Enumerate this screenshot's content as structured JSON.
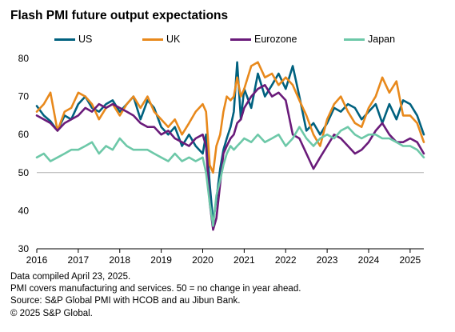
{
  "title": "Flash PMI future output expectations",
  "notes": [
    "Data compiled April 23, 2025.",
    "PMI covers manufacturing and services. 50 = no change in year ahead.",
    "Source: S&P Global PMI with HCOB and au Jibun Bank.",
    "© 2025 S&P Global."
  ],
  "chart_data": {
    "type": "line",
    "title": "Flash PMI future output expectations",
    "xlabel": "",
    "ylabel": "",
    "ylim": [
      30,
      80
    ],
    "yticks": [
      30,
      40,
      50,
      60,
      70,
      80
    ],
    "xlim": [
      2016.0,
      2025.33
    ],
    "xticks": [
      2016,
      2017,
      2018,
      2019,
      2020,
      2021,
      2022,
      2023,
      2024,
      2025
    ],
    "xtick_labels": [
      "2016",
      "2017",
      "2018",
      "2019",
      "2020",
      "2021",
      "2022",
      "2023",
      "2024",
      "2025"
    ],
    "reference_line": 50,
    "grid": false,
    "legend_position": "top",
    "series": [
      {
        "name": "US",
        "color": "#00617f",
        "points": [
          [
            2016.0,
            67.5
          ],
          [
            2016.17,
            65
          ],
          [
            2016.33,
            63.5
          ],
          [
            2016.5,
            61
          ],
          [
            2016.67,
            65
          ],
          [
            2016.83,
            64
          ],
          [
            2017.0,
            68
          ],
          [
            2017.17,
            70
          ],
          [
            2017.33,
            67
          ],
          [
            2017.5,
            66
          ],
          [
            2017.67,
            68
          ],
          [
            2017.83,
            69
          ],
          [
            2018.0,
            66
          ],
          [
            2018.17,
            68
          ],
          [
            2018.33,
            70
          ],
          [
            2018.5,
            64
          ],
          [
            2018.67,
            69
          ],
          [
            2018.83,
            67
          ],
          [
            2019.0,
            62
          ],
          [
            2019.17,
            60
          ],
          [
            2019.33,
            62
          ],
          [
            2019.5,
            57
          ],
          [
            2019.67,
            60
          ],
          [
            2019.83,
            57
          ],
          [
            2020.0,
            55
          ],
          [
            2020.08,
            60
          ],
          [
            2020.17,
            47
          ],
          [
            2020.25,
            37
          ],
          [
            2020.33,
            43
          ],
          [
            2020.42,
            51
          ],
          [
            2020.5,
            56
          ],
          [
            2020.58,
            59
          ],
          [
            2020.67,
            62
          ],
          [
            2020.75,
            66
          ],
          [
            2020.83,
            79
          ],
          [
            2020.92,
            64
          ],
          [
            2021.0,
            72
          ],
          [
            2021.17,
            67
          ],
          [
            2021.33,
            76
          ],
          [
            2021.5,
            70
          ],
          [
            2021.67,
            73
          ],
          [
            2021.83,
            76
          ],
          [
            2022.0,
            72
          ],
          [
            2022.17,
            78
          ],
          [
            2022.33,
            70
          ],
          [
            2022.5,
            61
          ],
          [
            2022.67,
            63
          ],
          [
            2022.83,
            60
          ],
          [
            2023.0,
            63
          ],
          [
            2023.17,
            67
          ],
          [
            2023.33,
            66
          ],
          [
            2023.5,
            68
          ],
          [
            2023.67,
            67
          ],
          [
            2023.83,
            64
          ],
          [
            2024.0,
            66
          ],
          [
            2024.17,
            68
          ],
          [
            2024.33,
            63
          ],
          [
            2024.5,
            68
          ],
          [
            2024.67,
            64
          ],
          [
            2024.83,
            69
          ],
          [
            2025.0,
            68
          ],
          [
            2025.17,
            65
          ],
          [
            2025.33,
            60
          ]
        ]
      },
      {
        "name": "UK",
        "color": "#e8891c",
        "points": [
          [
            2016.0,
            66
          ],
          [
            2016.17,
            68
          ],
          [
            2016.33,
            71
          ],
          [
            2016.5,
            61
          ],
          [
            2016.67,
            66
          ],
          [
            2016.83,
            67
          ],
          [
            2017.0,
            71
          ],
          [
            2017.17,
            70
          ],
          [
            2017.33,
            68
          ],
          [
            2017.5,
            64
          ],
          [
            2017.67,
            67
          ],
          [
            2017.83,
            68
          ],
          [
            2018.0,
            65
          ],
          [
            2018.17,
            68
          ],
          [
            2018.33,
            70
          ],
          [
            2018.5,
            67
          ],
          [
            2018.67,
            70
          ],
          [
            2018.83,
            66
          ],
          [
            2019.0,
            64
          ],
          [
            2019.17,
            62
          ],
          [
            2019.33,
            64
          ],
          [
            2019.5,
            60
          ],
          [
            2019.67,
            63
          ],
          [
            2019.83,
            66
          ],
          [
            2020.0,
            68
          ],
          [
            2020.08,
            66
          ],
          [
            2020.17,
            52
          ],
          [
            2020.25,
            50
          ],
          [
            2020.33,
            57
          ],
          [
            2020.42,
            60
          ],
          [
            2020.5,
            66
          ],
          [
            2020.58,
            70
          ],
          [
            2020.67,
            69
          ],
          [
            2020.75,
            70
          ],
          [
            2020.83,
            75
          ],
          [
            2020.92,
            70
          ],
          [
            2021.0,
            72
          ],
          [
            2021.17,
            78
          ],
          [
            2021.33,
            79
          ],
          [
            2021.5,
            75
          ],
          [
            2021.67,
            76
          ],
          [
            2021.83,
            73
          ],
          [
            2022.0,
            75
          ],
          [
            2022.17,
            73
          ],
          [
            2022.33,
            69
          ],
          [
            2022.5,
            65
          ],
          [
            2022.67,
            60
          ],
          [
            2022.83,
            57
          ],
          [
            2023.0,
            64
          ],
          [
            2023.17,
            68
          ],
          [
            2023.33,
            70
          ],
          [
            2023.5,
            66
          ],
          [
            2023.67,
            63
          ],
          [
            2023.83,
            62
          ],
          [
            2024.0,
            67
          ],
          [
            2024.17,
            70
          ],
          [
            2024.33,
            75
          ],
          [
            2024.5,
            71
          ],
          [
            2024.67,
            74
          ],
          [
            2024.83,
            65
          ],
          [
            2025.0,
            65
          ],
          [
            2025.17,
            63
          ],
          [
            2025.33,
            58
          ]
        ]
      },
      {
        "name": "Eurozone",
        "color": "#6a1b7a",
        "points": [
          [
            2016.0,
            65
          ],
          [
            2016.17,
            64
          ],
          [
            2016.33,
            63
          ],
          [
            2016.5,
            61
          ],
          [
            2016.67,
            63
          ],
          [
            2016.83,
            64
          ],
          [
            2017.0,
            65
          ],
          [
            2017.17,
            67
          ],
          [
            2017.33,
            66
          ],
          [
            2017.5,
            68
          ],
          [
            2017.67,
            67
          ],
          [
            2017.83,
            68
          ],
          [
            2018.0,
            67
          ],
          [
            2018.17,
            66
          ],
          [
            2018.33,
            65
          ],
          [
            2018.5,
            63
          ],
          [
            2018.67,
            62
          ],
          [
            2018.83,
            62
          ],
          [
            2019.0,
            60
          ],
          [
            2019.17,
            61
          ],
          [
            2019.33,
            59
          ],
          [
            2019.5,
            58
          ],
          [
            2019.67,
            57
          ],
          [
            2019.83,
            59
          ],
          [
            2020.0,
            60
          ],
          [
            2020.08,
            57
          ],
          [
            2020.17,
            42
          ],
          [
            2020.25,
            35
          ],
          [
            2020.33,
            38
          ],
          [
            2020.42,
            47
          ],
          [
            2020.5,
            55
          ],
          [
            2020.58,
            57
          ],
          [
            2020.67,
            59
          ],
          [
            2020.75,
            60
          ],
          [
            2020.83,
            63
          ],
          [
            2020.92,
            64
          ],
          [
            2021.0,
            67
          ],
          [
            2021.17,
            70
          ],
          [
            2021.33,
            72
          ],
          [
            2021.5,
            73
          ],
          [
            2021.67,
            70
          ],
          [
            2021.83,
            71
          ],
          [
            2022.0,
            69
          ],
          [
            2022.17,
            60
          ],
          [
            2022.33,
            59
          ],
          [
            2022.5,
            55
          ],
          [
            2022.67,
            51
          ],
          [
            2022.83,
            54
          ],
          [
            2023.0,
            57
          ],
          [
            2023.17,
            60
          ],
          [
            2023.33,
            59
          ],
          [
            2023.5,
            57
          ],
          [
            2023.67,
            55
          ],
          [
            2023.83,
            56
          ],
          [
            2024.0,
            58
          ],
          [
            2024.17,
            61
          ],
          [
            2024.33,
            63
          ],
          [
            2024.5,
            60
          ],
          [
            2024.67,
            58
          ],
          [
            2024.83,
            58
          ],
          [
            2025.0,
            59
          ],
          [
            2025.17,
            58
          ],
          [
            2025.33,
            55
          ]
        ]
      },
      {
        "name": "Japan",
        "color": "#6dc8a8",
        "points": [
          [
            2016.0,
            54
          ],
          [
            2016.17,
            55
          ],
          [
            2016.33,
            53
          ],
          [
            2016.5,
            54
          ],
          [
            2016.67,
            55
          ],
          [
            2016.83,
            56
          ],
          [
            2017.0,
            56
          ],
          [
            2017.17,
            57
          ],
          [
            2017.33,
            58
          ],
          [
            2017.5,
            55
          ],
          [
            2017.67,
            57
          ],
          [
            2017.83,
            56
          ],
          [
            2018.0,
            59
          ],
          [
            2018.17,
            57
          ],
          [
            2018.33,
            56
          ],
          [
            2018.5,
            56
          ],
          [
            2018.67,
            56
          ],
          [
            2018.83,
            55
          ],
          [
            2019.0,
            54
          ],
          [
            2019.17,
            53
          ],
          [
            2019.33,
            55
          ],
          [
            2019.5,
            53
          ],
          [
            2019.67,
            54
          ],
          [
            2019.83,
            53
          ],
          [
            2020.0,
            54
          ],
          [
            2020.08,
            50
          ],
          [
            2020.17,
            42
          ],
          [
            2020.25,
            36
          ],
          [
            2020.33,
            44
          ],
          [
            2020.42,
            48
          ],
          [
            2020.5,
            52
          ],
          [
            2020.58,
            55
          ],
          [
            2020.67,
            57
          ],
          [
            2020.75,
            56
          ],
          [
            2020.83,
            57
          ],
          [
            2020.92,
            58
          ],
          [
            2021.0,
            59
          ],
          [
            2021.17,
            58
          ],
          [
            2021.33,
            60
          ],
          [
            2021.5,
            58
          ],
          [
            2021.67,
            59
          ],
          [
            2021.83,
            60
          ],
          [
            2022.0,
            57
          ],
          [
            2022.17,
            59
          ],
          [
            2022.33,
            62
          ],
          [
            2022.5,
            59
          ],
          [
            2022.67,
            57
          ],
          [
            2022.83,
            59
          ],
          [
            2023.0,
            60
          ],
          [
            2023.17,
            59
          ],
          [
            2023.33,
            61
          ],
          [
            2023.5,
            62
          ],
          [
            2023.67,
            60
          ],
          [
            2023.83,
            59
          ],
          [
            2024.0,
            60
          ],
          [
            2024.17,
            60
          ],
          [
            2024.33,
            59
          ],
          [
            2024.5,
            59
          ],
          [
            2024.67,
            58
          ],
          [
            2024.83,
            57
          ],
          [
            2025.0,
            57
          ],
          [
            2025.17,
            56
          ],
          [
            2025.33,
            54
          ]
        ]
      }
    ]
  }
}
